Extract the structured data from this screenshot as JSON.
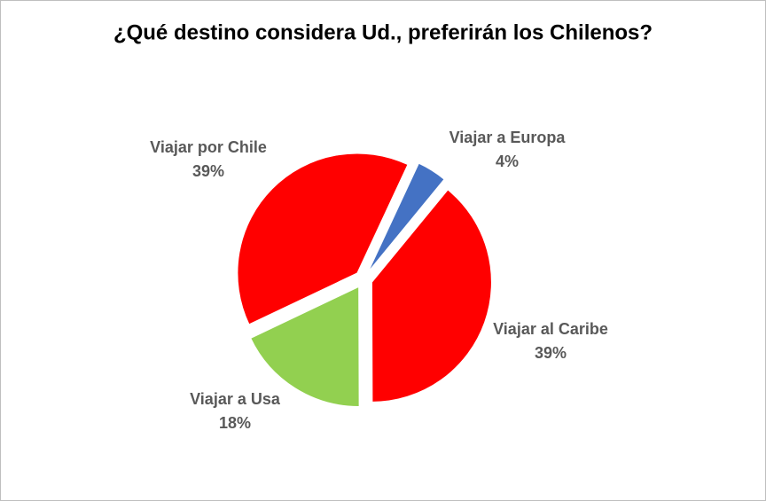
{
  "chart_data": {
    "type": "pie",
    "title": "¿Qué destino considera Ud., preferirán los Chilenos?",
    "categories": [
      "Viajar a Europa",
      "Viajar al Caribe",
      "Viajar a Usa",
      "Viajar por Chile"
    ],
    "values": [
      4,
      39,
      18,
      39
    ],
    "value_labels": [
      "4%",
      "39%",
      "18%",
      "39%"
    ],
    "colors": [
      "#4472c4",
      "#ff0000",
      "#92d050",
      "#ff0000"
    ]
  }
}
